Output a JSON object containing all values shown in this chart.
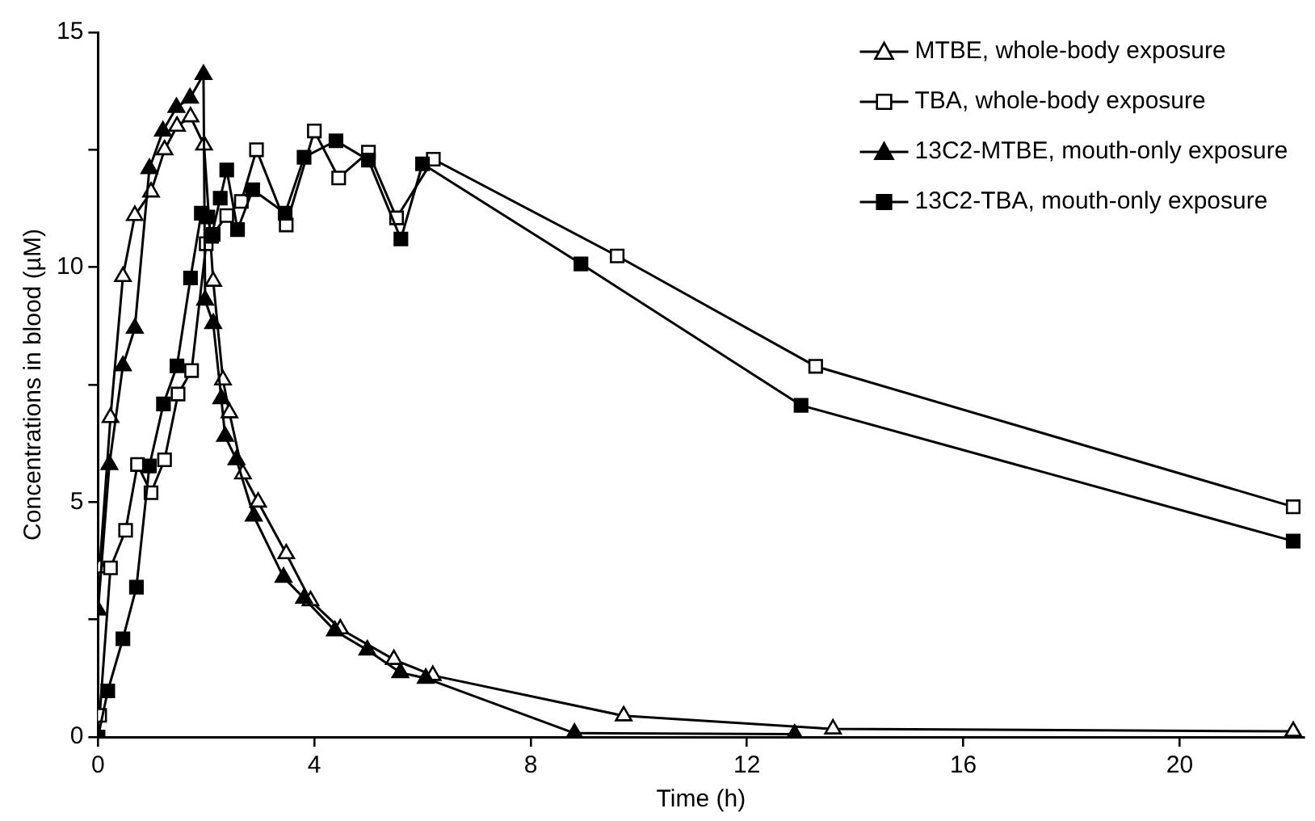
{
  "chart_data": {
    "type": "line",
    "xlabel": "Time (h)",
    "ylabel": "Concentrations in blood (µM)",
    "xlim": [
      0,
      22.3
    ],
    "xticks": [
      0,
      4,
      8,
      12,
      16,
      20
    ],
    "ylim": [
      0,
      15
    ],
    "yticks": [
      0,
      {
        "value": 2.5,
        "label": null
      },
      5,
      {
        "value": 7.5,
        "label": null
      },
      10,
      {
        "value": 12.5,
        "label": null
      },
      15
    ],
    "grid": false,
    "legend": "top right",
    "line_style": "solid",
    "series": [
      {
        "name": "MTBE, whole-body exposure",
        "color": "#ffffff",
        "marker": "triangle",
        "x": [
          0.03,
          0.23,
          0.46,
          0.68,
          0.98,
          1.23,
          1.46,
          1.71,
          1.96,
          2.13,
          2.31,
          2.43,
          2.68,
          2.96,
          3.48,
          3.93,
          4.48,
          5.47,
          6.19,
          9.72,
          13.59,
          22.1
        ],
        "values": [
          3.6,
          6.8,
          9.8,
          11.1,
          11.6,
          12.5,
          13.0,
          13.2,
          12.6,
          9.7,
          7.6,
          6.9,
          5.6,
          5.0,
          3.9,
          2.9,
          2.3,
          1.65,
          1.31,
          0.45,
          0.17,
          0.12
        ]
      },
      {
        "name": "TBA, whole-body exposure",
        "color": "#ffffff",
        "marker": "square",
        "x": [
          0.03,
          0.23,
          0.51,
          0.73,
          0.98,
          1.23,
          1.48,
          1.73,
          2.0,
          2.13,
          2.38,
          2.65,
          2.93,
          3.48,
          4.0,
          4.45,
          5.0,
          5.52,
          6.2,
          9.6,
          13.27,
          22.1
        ],
        "values": [
          0.46,
          3.6,
          4.4,
          5.8,
          5.2,
          5.9,
          7.3,
          7.8,
          10.5,
          10.7,
          11.1,
          11.4,
          12.5,
          10.9,
          12.9,
          11.9,
          12.45,
          11.05,
          12.3,
          10.24,
          7.89,
          4.9
        ]
      },
      {
        "name": "13C2-MTBE, mouth-only exposure",
        "color": "#000000",
        "marker": "triangle",
        "x": [
          0,
          0.21,
          0.46,
          0.68,
          0.95,
          1.2,
          1.45,
          1.7,
          1.95,
          1.98,
          2.13,
          2.28,
          2.35,
          2.56,
          2.88,
          3.43,
          3.81,
          4.38,
          4.98,
          5.59,
          6.06,
          8.81,
          12.88
        ],
        "values": [
          2.7,
          5.8,
          7.9,
          8.7,
          12.1,
          12.9,
          13.4,
          13.6,
          14.1,
          9.3,
          8.8,
          7.2,
          6.4,
          5.9,
          4.7,
          3.4,
          2.95,
          2.26,
          1.85,
          1.37,
          1.25,
          0.08,
          0.06
        ]
      },
      {
        "name": "13C2-TBA, mouth-only exposure",
        "color": "#000000",
        "marker": "square",
        "x": [
          0,
          0.18,
          0.46,
          0.71,
          0.95,
          1.21,
          1.46,
          1.71,
          1.91,
          2.03,
          2.1,
          2.26,
          2.38,
          2.58,
          2.86,
          3.46,
          3.81,
          4.4,
          5.0,
          5.6,
          6.0,
          8.93,
          13.0,
          22.1
        ],
        "values": [
          0,
          0.98,
          2.09,
          3.19,
          5.77,
          7.09,
          7.9,
          9.77,
          11.15,
          11.07,
          10.66,
          11.47,
          12.07,
          10.8,
          11.65,
          11.15,
          12.34,
          12.69,
          12.28,
          10.6,
          12.2,
          10.07,
          7.06,
          4.17
        ]
      }
    ]
  }
}
